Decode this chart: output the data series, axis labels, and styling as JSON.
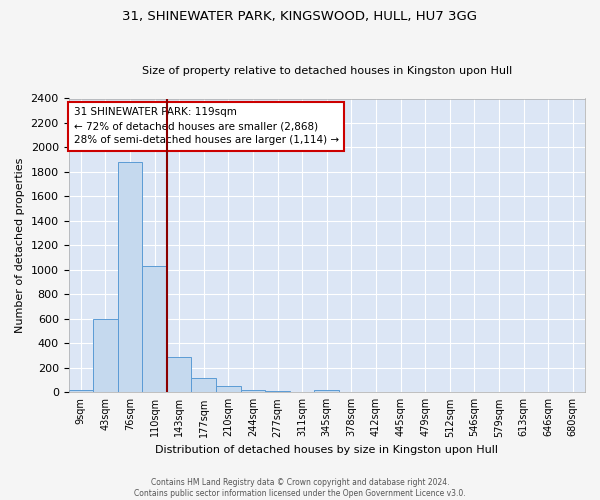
{
  "title1": "31, SHINEWATER PARK, KINGSWOOD, HULL, HU7 3GG",
  "title2": "Size of property relative to detached houses in Kingston upon Hull",
  "xlabel": "Distribution of detached houses by size in Kingston upon Hull",
  "ylabel": "Number of detached properties",
  "bar_labels": [
    "9sqm",
    "43sqm",
    "76sqm",
    "110sqm",
    "143sqm",
    "177sqm",
    "210sqm",
    "244sqm",
    "277sqm",
    "311sqm",
    "345sqm",
    "378sqm",
    "412sqm",
    "445sqm",
    "479sqm",
    "512sqm",
    "546sqm",
    "579sqm",
    "613sqm",
    "646sqm",
    "680sqm"
  ],
  "bar_values": [
    15,
    600,
    1880,
    1030,
    285,
    115,
    50,
    18,
    12,
    0,
    18,
    0,
    0,
    0,
    0,
    0,
    0,
    0,
    0,
    0,
    0
  ],
  "bar_color": "#c5d9ee",
  "bar_edge_color": "#5b9bd5",
  "bg_color": "#dce6f5",
  "grid_color": "#ffffff",
  "annotation_text": "31 SHINEWATER PARK: 119sqm\n← 72% of detached houses are smaller (2,868)\n28% of semi-detached houses are larger (1,114) →",
  "annotation_box_color": "#ffffff",
  "annotation_box_edge": "#cc0000",
  "red_line_x": 3.5,
  "ylim": [
    0,
    2400
  ],
  "yticks": [
    0,
    200,
    400,
    600,
    800,
    1000,
    1200,
    1400,
    1600,
    1800,
    2000,
    2200,
    2400
  ],
  "fig_bg": "#f5f5f5",
  "footer": "Contains HM Land Registry data © Crown copyright and database right 2024.\nContains public sector information licensed under the Open Government Licence v3.0."
}
